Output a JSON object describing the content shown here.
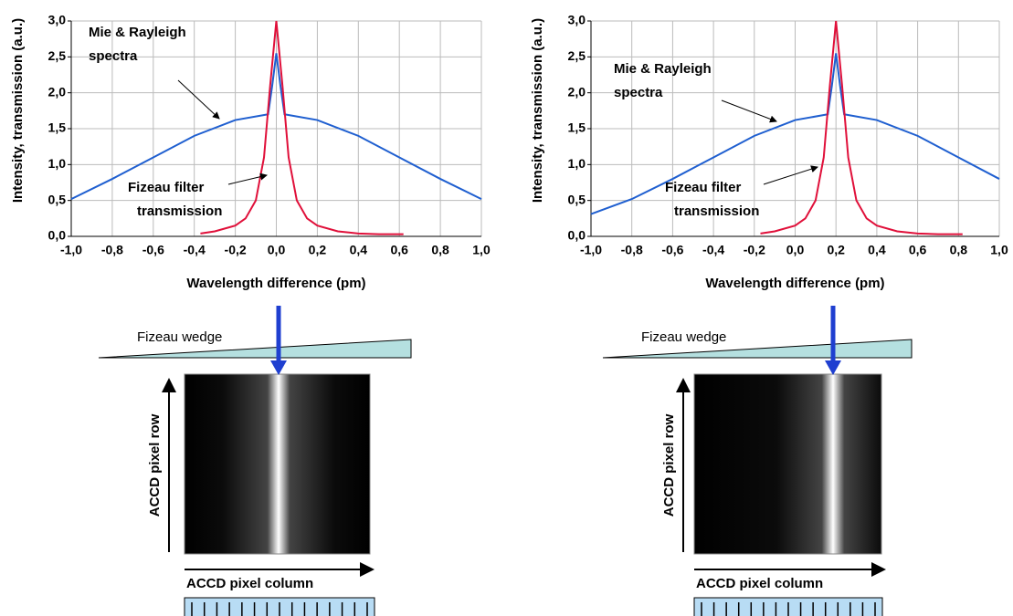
{
  "chart_data": [
    {
      "type": "line",
      "xlabel": "Wavelength difference (pm)",
      "ylabel": "Intensity, transmission (a.u.)",
      "xlim": [
        -1,
        1
      ],
      "ylim": [
        0,
        3
      ],
      "grid": true,
      "xticks": [
        {
          "value": -1,
          "label": "-1,0"
        },
        {
          "value": -0.8,
          "label": "-0,8"
        },
        {
          "value": -0.6,
          "label": "-0,6"
        },
        {
          "value": -0.4,
          "label": "-0,4"
        },
        {
          "value": -0.2,
          "label": "-0,2"
        },
        {
          "value": 0,
          "label": "0,0"
        },
        {
          "value": 0.2,
          "label": "0,2"
        },
        {
          "value": 0.4,
          "label": "0,4"
        },
        {
          "value": 0.6,
          "label": "0,6"
        },
        {
          "value": 0.8,
          "label": "0,8"
        },
        {
          "value": 1,
          "label": "1,0"
        }
      ],
      "yticks": [
        {
          "value": 0,
          "label": "0,0"
        },
        {
          "value": 0.5,
          "label": "0,5"
        },
        {
          "value": 1,
          "label": "1,0"
        },
        {
          "value": 1.5,
          "label": "1,5"
        },
        {
          "value": 2,
          "label": "2,0"
        },
        {
          "value": 2.5,
          "label": "2,5"
        },
        {
          "value": 3,
          "label": "3,0"
        }
      ],
      "series": [
        {
          "color": "#1f5fd0",
          "x": [
            -1,
            -0.8,
            -0.6,
            -0.4,
            -0.2,
            -0.04,
            -0.02,
            0,
            0.02,
            0.04,
            0.2,
            0.4,
            0.6,
            0.8,
            1
          ],
          "values": [
            0.52,
            0.8,
            1.1,
            1.4,
            1.62,
            1.7,
            2.1,
            2.55,
            2.1,
            1.7,
            1.62,
            1.4,
            1.1,
            0.8,
            0.52
          ]
        },
        {
          "color": "#e0103a",
          "x": [
            -0.37,
            -0.3,
            -0.2,
            -0.15,
            -0.1,
            -0.06,
            -0.03,
            0,
            0.03,
            0.06,
            0.1,
            0.15,
            0.2,
            0.3,
            0.4,
            0.5,
            0.62
          ],
          "values": [
            0.04,
            0.07,
            0.15,
            0.25,
            0.5,
            1.1,
            2.1,
            3,
            2.1,
            1.1,
            0.5,
            0.25,
            0.15,
            0.07,
            0.04,
            0.03,
            0.03
          ]
        }
      ],
      "annotations": [
        {
          "color": "#1f5fd0",
          "lines": [
            "Mie & Rayleigh",
            "spectra"
          ]
        },
        {
          "color": "#e0103a",
          "lines": [
            "Fizeau filter",
            "transmission"
          ]
        }
      ]
    },
    {
      "type": "line",
      "xlabel": "Wavelength difference (pm)",
      "ylabel": "Intensity, transmission (a.u.)",
      "xlim": [
        -1,
        1
      ],
      "ylim": [
        0,
        3
      ],
      "grid": true,
      "xticks": [
        {
          "value": -1,
          "label": "-1,0"
        },
        {
          "value": -0.8,
          "label": "-0,8"
        },
        {
          "value": -0.6,
          "label": "-0,6"
        },
        {
          "value": -0.4,
          "label": "-0,4"
        },
        {
          "value": -0.2,
          "label": "-0,2"
        },
        {
          "value": 0,
          "label": "0,0"
        },
        {
          "value": 0.2,
          "label": "0,2"
        },
        {
          "value": 0.4,
          "label": "0,4"
        },
        {
          "value": 0.6,
          "label": "0,6"
        },
        {
          "value": 0.8,
          "label": "0,8"
        },
        {
          "value": 1,
          "label": "1,0"
        }
      ],
      "yticks": [
        {
          "value": 0,
          "label": "0,0"
        },
        {
          "value": 0.5,
          "label": "0,5"
        },
        {
          "value": 1,
          "label": "1,0"
        },
        {
          "value": 1.5,
          "label": "1,5"
        },
        {
          "value": 2,
          "label": "2,0"
        },
        {
          "value": 2.5,
          "label": "2,5"
        },
        {
          "value": 3,
          "label": "3,0"
        }
      ],
      "series": [
        {
          "color": "#1f5fd0",
          "x": [
            -1,
            -0.8,
            -0.6,
            -0.4,
            -0.2,
            0,
            0.16,
            0.18,
            0.2,
            0.22,
            0.24,
            0.4,
            0.6,
            0.8,
            1
          ],
          "values": [
            0.31,
            0.52,
            0.8,
            1.1,
            1.4,
            1.62,
            1.7,
            2.1,
            2.55,
            2.1,
            1.7,
            1.62,
            1.4,
            1.1,
            0.8
          ]
        },
        {
          "color": "#e0103a",
          "x": [
            -0.17,
            -0.1,
            0,
            0.05,
            0.1,
            0.14,
            0.17,
            0.2,
            0.23,
            0.26,
            0.3,
            0.35,
            0.4,
            0.5,
            0.6,
            0.7,
            0.82
          ],
          "values": [
            0.04,
            0.07,
            0.15,
            0.25,
            0.5,
            1.1,
            2.1,
            3,
            2.1,
            1.1,
            0.5,
            0.25,
            0.15,
            0.07,
            0.04,
            0.03,
            0.03
          ]
        }
      ],
      "annotations": [
        {
          "color": "#1f5fd0",
          "lines": [
            "Mie & Rayleigh",
            "spectra"
          ]
        },
        {
          "color": "#e0103a",
          "lines": [
            "Fizeau filter",
            "transmission"
          ]
        }
      ]
    }
  ],
  "diagrams": [
    {
      "wedge_label": "Fizeau wedge",
      "row_label": "ACCD pixel row",
      "column_label": "ACCD pixel column"
    },
    {
      "wedge_label": "Fizeau wedge",
      "row_label": "ACCD pixel row",
      "column_label": "ACCD pixel column"
    }
  ]
}
